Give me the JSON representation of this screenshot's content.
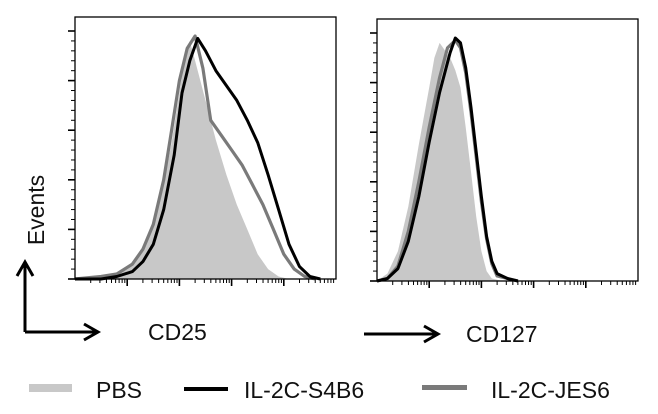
{
  "chart_data": [
    {
      "type": "area",
      "title": "",
      "xlabel": "CD25",
      "ylabel": "Events",
      "xscale": "log",
      "xlim": [
        0,
        5
      ],
      "ylim": [
        0,
        100
      ],
      "x_unit": "log10 decades",
      "series": [
        {
          "name": "PBS",
          "style": "filled",
          "color": "#c8c8c8",
          "x": [
            0,
            0.5,
            0.8,
            1.1,
            1.3,
            1.5,
            1.7,
            1.85,
            2.0,
            2.1,
            2.2,
            2.3,
            2.5,
            2.7,
            2.9,
            3.1,
            3.3,
            3.5,
            3.7,
            3.9,
            4.1
          ],
          "y": [
            0,
            1,
            2,
            6,
            12,
            22,
            38,
            55,
            75,
            90,
            96,
            88,
            72,
            56,
            42,
            30,
            20,
            10,
            4,
            1,
            0
          ]
        },
        {
          "name": "IL-2C-S4B6",
          "style": "line",
          "color": "#000000",
          "x": [
            0,
            0.5,
            0.8,
            1.1,
            1.3,
            1.5,
            1.7,
            1.9,
            2.05,
            2.2,
            2.35,
            2.5,
            2.7,
            2.9,
            3.1,
            3.3,
            3.5,
            3.7,
            3.9,
            4.1,
            4.3,
            4.5,
            4.7
          ],
          "y": [
            0,
            0,
            1,
            3,
            7,
            14,
            28,
            50,
            75,
            88,
            97,
            92,
            84,
            78,
            72,
            64,
            55,
            42,
            28,
            14,
            5,
            1,
            0
          ]
        },
        {
          "name": "IL-2C-JES6",
          "style": "line",
          "color": "#7a7a7a",
          "x": [
            0,
            0.5,
            0.8,
            1.1,
            1.3,
            1.5,
            1.7,
            1.85,
            2.0,
            2.15,
            2.3,
            2.45,
            2.6,
            2.8,
            3.0,
            3.2,
            3.4,
            3.6,
            3.8,
            4.0,
            4.2,
            4.4,
            4.6
          ],
          "y": [
            0,
            1,
            2,
            6,
            12,
            22,
            40,
            60,
            80,
            93,
            98,
            85,
            64,
            58,
            52,
            46,
            38,
            30,
            20,
            10,
            4,
            1,
            0
          ]
        }
      ]
    },
    {
      "type": "area",
      "title": "",
      "xlabel": "CD127",
      "ylabel": "Events",
      "xscale": "log",
      "xlim": [
        0,
        5
      ],
      "ylim": [
        0,
        100
      ],
      "x_unit": "log10 decades",
      "series": [
        {
          "name": "PBS",
          "style": "filled",
          "color": "#c8c8c8",
          "x": [
            0,
            0.2,
            0.4,
            0.6,
            0.8,
            1.0,
            1.1,
            1.2,
            1.3,
            1.4,
            1.5,
            1.6,
            1.7,
            1.8,
            1.9,
            2.0,
            2.1,
            2.2,
            2.4
          ],
          "y": [
            0,
            3,
            12,
            30,
            55,
            78,
            90,
            96,
            93,
            90,
            85,
            78,
            62,
            44,
            26,
            12,
            4,
            1,
            0
          ]
        },
        {
          "name": "IL-2C-S4B6",
          "style": "line",
          "color": "#000000",
          "x": [
            0,
            0.2,
            0.4,
            0.6,
            0.8,
            1.0,
            1.2,
            1.4,
            1.5,
            1.6,
            1.7,
            1.8,
            1.9,
            2.0,
            2.1,
            2.2,
            2.3,
            2.5,
            2.7
          ],
          "y": [
            0,
            1,
            5,
            16,
            34,
            56,
            76,
            92,
            98,
            96,
            86,
            70,
            52,
            34,
            18,
            8,
            3,
            1,
            0
          ]
        },
        {
          "name": "IL-2C-JES6",
          "style": "line",
          "color": "#7a7a7a",
          "x": [
            0,
            0.2,
            0.4,
            0.6,
            0.8,
            1.0,
            1.2,
            1.35,
            1.5,
            1.6,
            1.7,
            1.8,
            1.9,
            2.0,
            2.1,
            2.2,
            2.3,
            2.5,
            2.7
          ],
          "y": [
            0,
            1,
            6,
            20,
            40,
            62,
            82,
            94,
            97,
            94,
            84,
            68,
            50,
            32,
            17,
            7,
            2,
            1,
            0
          ]
        }
      ]
    }
  ],
  "legend": {
    "placement": "bottom",
    "entries": [
      {
        "label": "PBS",
        "color": "#c8c8c8"
      },
      {
        "label": "IL-2C-S4B6",
        "color": "#000000"
      },
      {
        "label": "IL-2C-JES6",
        "color": "#7a7a7a"
      }
    ]
  },
  "axis_labels": {
    "y": "Events",
    "x_left": "CD25",
    "x_right": "CD127"
  }
}
